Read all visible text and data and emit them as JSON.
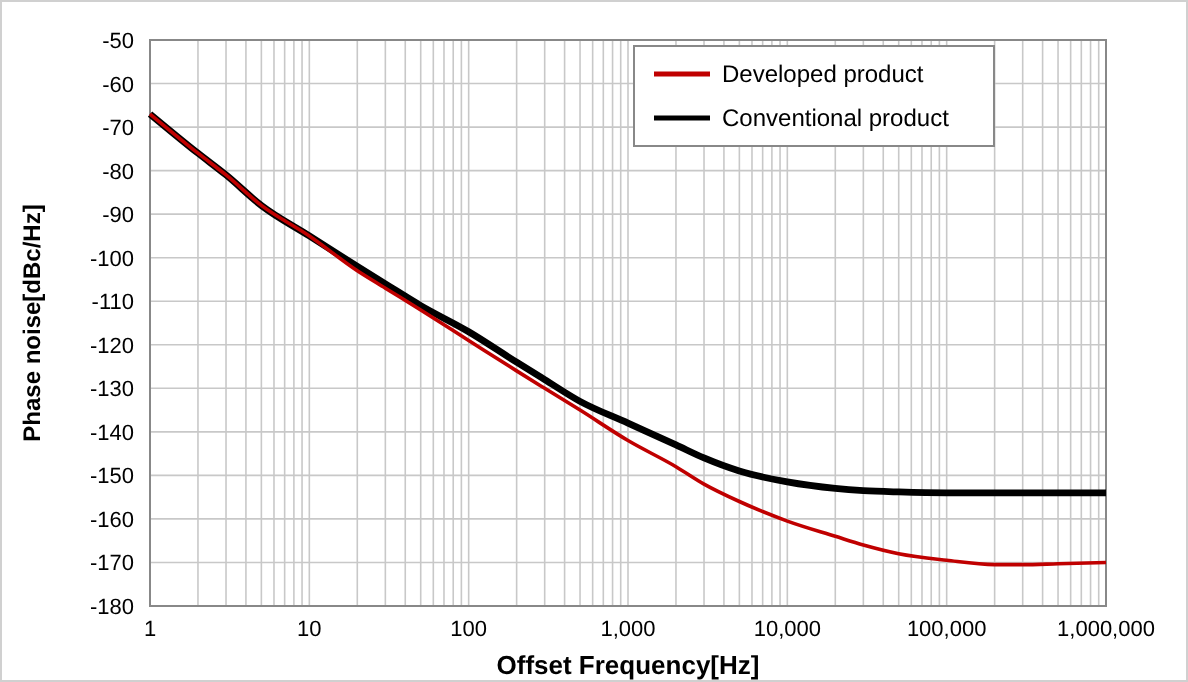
{
  "chart_data": {
    "type": "line",
    "xlabel": "Offset Frequency[Hz]",
    "ylabel": "Phase noise[dBc/Hz]",
    "log": "x",
    "grid": true,
    "legend": "top right",
    "marker": "none",
    "line_style": "solid",
    "x": [
      1,
      2,
      3,
      5,
      10,
      20,
      30,
      50,
      100,
      200,
      300,
      500,
      1000,
      2000,
      3000,
      5000,
      10000,
      20000,
      30000,
      50000,
      100000,
      200000,
      300000,
      500000,
      1000000
    ],
    "xlim": [
      1,
      1000000
    ],
    "ylim": [
      -180,
      -50
    ],
    "xticks": [
      1,
      {
        "value": 2,
        "label": null
      },
      {
        "value": 3,
        "label": null
      },
      {
        "value": 4,
        "label": null
      },
      {
        "value": 5,
        "label": null
      },
      {
        "value": 6,
        "label": null
      },
      {
        "value": 7,
        "label": null
      },
      {
        "value": 8,
        "label": null
      },
      {
        "value": 9,
        "label": null
      },
      10,
      {
        "value": 20,
        "label": null
      },
      {
        "value": 30,
        "label": null
      },
      {
        "value": 40,
        "label": null
      },
      {
        "value": 50,
        "label": null
      },
      {
        "value": 60,
        "label": null
      },
      {
        "value": 70,
        "label": null
      },
      {
        "value": 80,
        "label": null
      },
      {
        "value": 90,
        "label": null
      },
      100,
      {
        "value": 200,
        "label": null
      },
      {
        "value": 300,
        "label": null
      },
      {
        "value": 400,
        "label": null
      },
      {
        "value": 500,
        "label": null
      },
      {
        "value": 600,
        "label": null
      },
      {
        "value": 700,
        "label": null
      },
      {
        "value": 800,
        "label": null
      },
      {
        "value": 900,
        "label": null
      },
      {
        "value": 1000,
        "label": "1,000"
      },
      {
        "value": 2000,
        "label": null
      },
      {
        "value": 3000,
        "label": null
      },
      {
        "value": 4000,
        "label": null
      },
      {
        "value": 5000,
        "label": null
      },
      {
        "value": 6000,
        "label": null
      },
      {
        "value": 7000,
        "label": null
      },
      {
        "value": 8000,
        "label": null
      },
      {
        "value": 9000,
        "label": null
      },
      {
        "value": 10000,
        "label": "10,000"
      },
      {
        "value": 20000,
        "label": null
      },
      {
        "value": 30000,
        "label": null
      },
      {
        "value": 40000,
        "label": null
      },
      {
        "value": 50000,
        "label": null
      },
      {
        "value": 60000,
        "label": null
      },
      {
        "value": 70000,
        "label": null
      },
      {
        "value": 80000,
        "label": null
      },
      {
        "value": 90000,
        "label": null
      },
      {
        "value": 100000,
        "label": "100,000"
      },
      {
        "value": 200000,
        "label": null
      },
      {
        "value": 300000,
        "label": null
      },
      {
        "value": 400000,
        "label": null
      },
      {
        "value": 500000,
        "label": null
      },
      {
        "value": 600000,
        "label": null
      },
      {
        "value": 700000,
        "label": null
      },
      {
        "value": 800000,
        "label": null
      },
      {
        "value": 900000,
        "label": null
      },
      {
        "value": 1000000,
        "label": "1,000,000"
      }
    ],
    "yticks": [
      -180,
      -170,
      -160,
      -150,
      -140,
      -130,
      -120,
      -110,
      -100,
      -90,
      -80,
      -70,
      -60,
      -50
    ],
    "series": [
      {
        "name": "Developed product",
        "color": "#c00000",
        "values": [
          -67,
          -76,
          -81,
          -88,
          -95,
          -103,
          -107,
          -112,
          -119,
          -126,
          -130,
          -135,
          -142,
          -148,
          -152,
          -156,
          -160.5,
          -164,
          -166,
          -168,
          -169.5,
          -170.5,
          -170.5,
          -170.3,
          -170
        ]
      },
      {
        "name": "Conventional product",
        "color": "#000000",
        "values": [
          -67,
          -76,
          -81,
          -88,
          -95,
          -102,
          -106,
          -111,
          -117,
          -124,
          -128,
          -133,
          -138,
          -143,
          -146,
          -149,
          -151.5,
          -153,
          -153.5,
          -153.8,
          -154,
          -154,
          -154,
          -154,
          -154
        ]
      }
    ]
  }
}
